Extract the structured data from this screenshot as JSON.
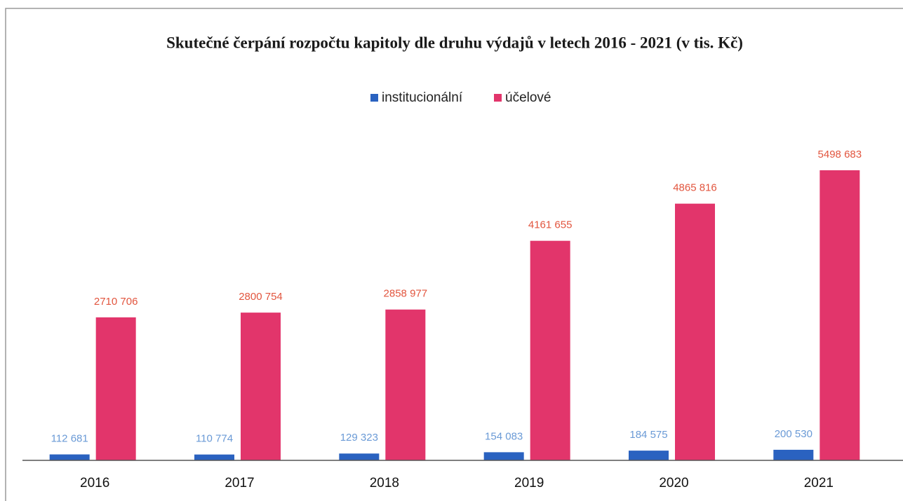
{
  "chart_data": {
    "type": "bar",
    "title": "Skutečné čerpání rozpočtu kapitoly dle druhu výdajů v letech 2016 - 2021 (v tis. Kč)",
    "categories": [
      "2016",
      "2017",
      "2018",
      "2019",
      "2020",
      "2021"
    ],
    "series": [
      {
        "name": "institucionální",
        "color": "#2a62c0",
        "label_color": "#6a9ad6",
        "values": [
          112681,
          110774,
          129323,
          154083,
          184575,
          200530
        ],
        "value_labels": [
          "112 681",
          "110 774",
          "129 323",
          "154 083",
          "184 575",
          "200 530"
        ]
      },
      {
        "name": "účelové",
        "color": "#e2356b",
        "label_color": "#e2553e",
        "values": [
          2710706,
          2800754,
          2858977,
          4161655,
          4865816,
          5498683
        ],
        "value_labels": [
          "2710 706",
          "2800 754",
          "2858 977",
          "4161 655",
          "4865 816",
          "5498 683"
        ]
      }
    ],
    "legend": "top"
  }
}
